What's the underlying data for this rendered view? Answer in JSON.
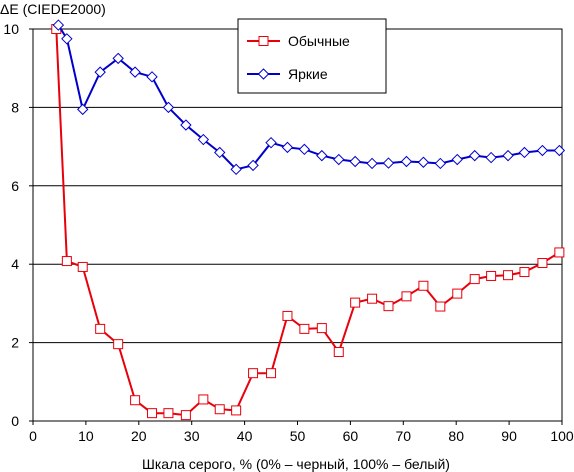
{
  "chart_data": {
    "type": "line",
    "ylabel": "ΔE (CIEDE2000)",
    "xlabel": "Шкала серого, % (0% – черный, 100% – белый)",
    "xlim": [
      0,
      100
    ],
    "ylim": [
      0,
      10
    ],
    "x_ticks": [
      0,
      10,
      20,
      30,
      40,
      50,
      60,
      70,
      80,
      90,
      100
    ],
    "y_ticks": [
      0,
      2,
      4,
      6,
      8,
      10
    ],
    "grid": "horizontal",
    "legend_position": "top-center",
    "series": [
      {
        "name": "Обычные",
        "color": "#e8000b",
        "marker": "square",
        "x": [
          4.4,
          6.4,
          9.4,
          12.7,
          16.1,
          19.3,
          22.5,
          25.6,
          28.9,
          32.2,
          35.3,
          38.4,
          41.6,
          45.0,
          48.1,
          51.3,
          54.6,
          57.8,
          60.9,
          64.1,
          67.2,
          70.6,
          73.8,
          77.0,
          80.2,
          83.5,
          86.6,
          89.8,
          92.9,
          96.3,
          99.5
        ],
        "y": [
          10.0,
          4.08,
          3.93,
          2.35,
          1.96,
          0.53,
          0.2,
          0.2,
          0.15,
          0.55,
          0.3,
          0.27,
          1.22,
          1.22,
          2.68,
          2.35,
          2.37,
          1.76,
          3.02,
          3.12,
          2.93,
          3.18,
          3.45,
          2.92,
          3.25,
          3.62,
          3.7,
          3.72,
          3.8,
          4.03,
          4.3
        ]
      },
      {
        "name": "Яркие",
        "color": "#0000cc",
        "marker": "diamond",
        "x": [
          4.8,
          6.4,
          9.4,
          12.7,
          16.1,
          19.3,
          22.5,
          25.6,
          28.9,
          32.2,
          35.3,
          38.4,
          41.6,
          45.0,
          48.1,
          51.3,
          54.6,
          57.8,
          60.9,
          64.1,
          67.2,
          70.6,
          73.8,
          77.0,
          80.2,
          83.5,
          86.6,
          89.8,
          92.9,
          96.3,
          99.5
        ],
        "y": [
          10.1,
          9.75,
          7.95,
          8.9,
          9.25,
          8.9,
          8.78,
          8.0,
          7.55,
          7.18,
          6.85,
          6.42,
          6.52,
          7.1,
          6.98,
          6.93,
          6.77,
          6.67,
          6.62,
          6.57,
          6.58,
          6.62,
          6.6,
          6.57,
          6.67,
          6.77,
          6.72,
          6.77,
          6.85,
          6.9,
          6.9
        ]
      }
    ]
  }
}
